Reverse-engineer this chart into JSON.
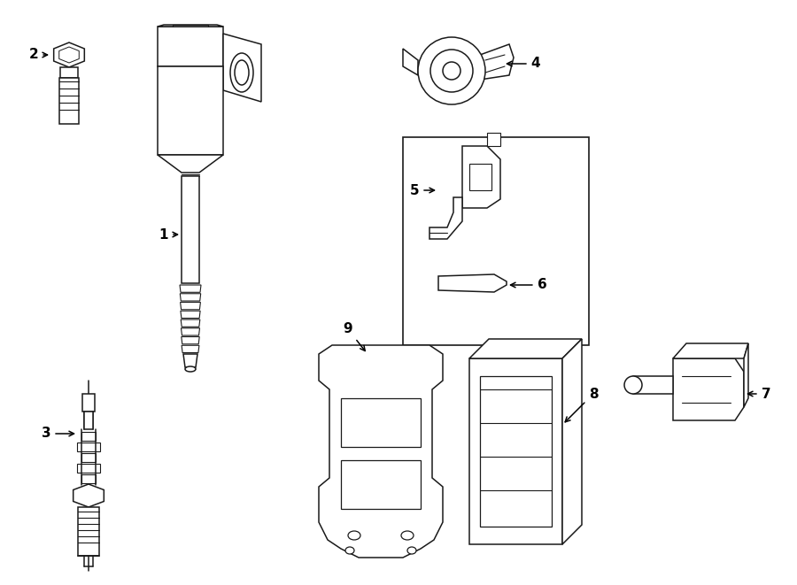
{
  "bg_color": "#ffffff",
  "line_color": "#1a1a1a",
  "lw": 1.1,
  "fig_w": 9.0,
  "fig_h": 6.61
}
